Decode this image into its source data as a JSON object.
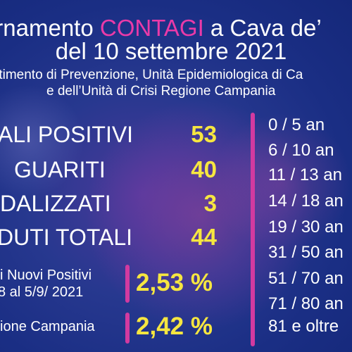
{
  "title": {
    "line1_prefix": "rnamento ",
    "line1_accent": "CONTAGI",
    "line1_suffix": " a Cava de’",
    "line2": "del 10 settembre 2021"
  },
  "source": {
    "line1": "rtimento di Prevenzione, Unità Epidemiologica di Ca",
    "line2": "e dell’Unità di Crisi Regione Campania"
  },
  "stats": [
    {
      "label": "ALI POSITIVI",
      "value": "53"
    },
    {
      "label": "GUARITI",
      "value": "40"
    },
    {
      "label": "DALIZZATI",
      "value": "3"
    },
    {
      "label": "DUTI TOTALI",
      "value": "44"
    }
  ],
  "percentages": {
    "new_positives_line1": "i Nuovi Positivi",
    "new_positives_line2": "8 al 5/9/ 2021",
    "new_positives_value": "2,53 %",
    "region_label": "ione Campania",
    "region_value": "2,42 %"
  },
  "age_groups": [
    "0  /   5 an",
    "6  /  10 an",
    "11  /  13 an",
    "14 / 18  an",
    "19 / 30 an",
    "31 / 50 an",
    "51 / 70 an",
    "71 / 80 an",
    "81 e oltre"
  ],
  "colors": {
    "background": "#1b2f86",
    "accent_pink": "#ea3aa8",
    "value_yellow": "#f6e640",
    "divider_magenta": "#d23aa0"
  }
}
